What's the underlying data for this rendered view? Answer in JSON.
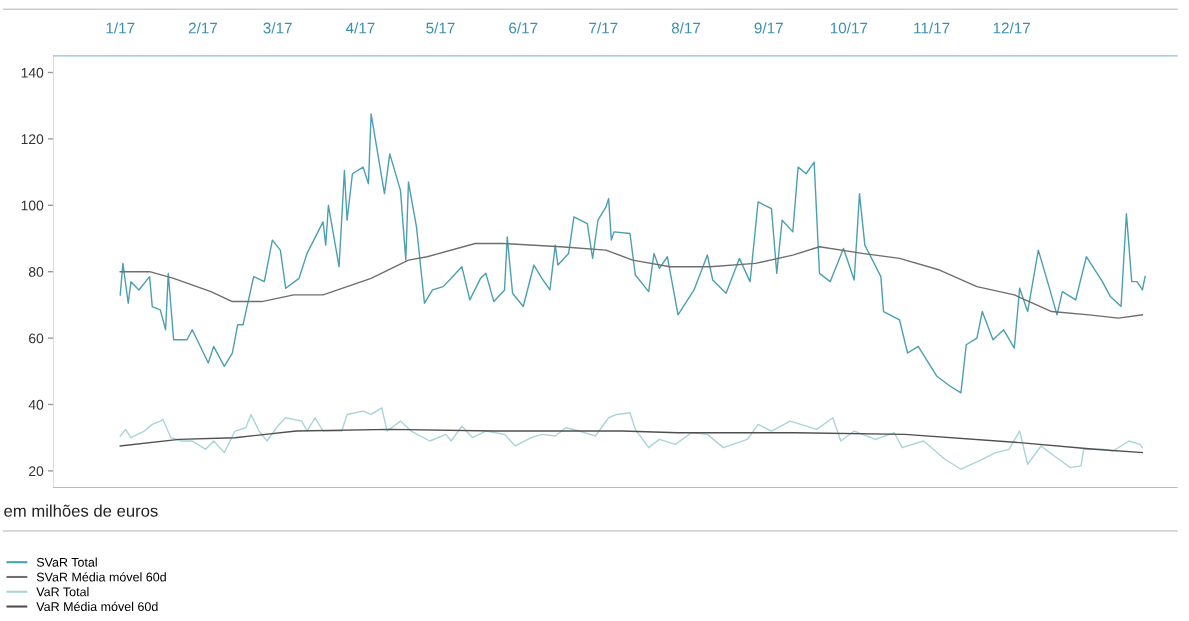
{
  "chart_data": {
    "type": "line",
    "annotations": [
      "em milhões de euros"
    ],
    "xticks": [
      {
        "value": "2017-01-01",
        "label": "1/17"
      },
      {
        "value": "2017-02-01",
        "label": "2/17"
      },
      {
        "value": "2017-03-01",
        "label": "3/17"
      },
      {
        "value": "2017-04-01",
        "label": "4/17"
      },
      {
        "value": "2017-05-01",
        "label": "5/17"
      },
      {
        "value": "2017-06-01",
        "label": "6/17"
      },
      {
        "value": "2017-07-01",
        "label": "7/17"
      },
      {
        "value": "2017-08-01",
        "label": "8/17"
      },
      {
        "value": "2017-09-01",
        "label": "9/17"
      },
      {
        "value": "2017-10-01",
        "label": "10/17"
      },
      {
        "value": "2017-11-01",
        "label": "11/17"
      },
      {
        "value": "2017-12-01",
        "label": "12/17"
      }
    ],
    "xlim": [
      "2016-12-07",
      "2018-02-01"
    ],
    "ylim": [
      15,
      145
    ],
    "yticks": [
      20,
      40,
      60,
      80,
      100,
      120,
      140
    ],
    "grid": false,
    "legend": "bottom left",
    "marker": "none",
    "line_style": "solid",
    "series": [
      {
        "name": "SVaR Total",
        "color": "#4a9fb0",
        "x": [
          "2017-01-01",
          "2017-01-02",
          "2017-01-04",
          "2017-01-05",
          "2017-01-08",
          "2017-01-12",
          "2017-01-13",
          "2017-01-16",
          "2017-01-18",
          "2017-01-19",
          "2017-01-21",
          "2017-01-26",
          "2017-01-28",
          "2017-02-03",
          "2017-02-05",
          "2017-02-09",
          "2017-02-12",
          "2017-02-14",
          "2017-02-16",
          "2017-02-20",
          "2017-02-24",
          "2017-02-27",
          "2017-03-02",
          "2017-03-04",
          "2017-03-09",
          "2017-03-12",
          "2017-03-18",
          "2017-03-19",
          "2017-03-20",
          "2017-03-24",
          "2017-03-26",
          "2017-03-27",
          "2017-03-29",
          "2017-04-02",
          "2017-04-04",
          "2017-04-05",
          "2017-04-10",
          "2017-04-12",
          "2017-04-16",
          "2017-04-18",
          "2017-04-19",
          "2017-04-22",
          "2017-04-25",
          "2017-04-28",
          "2017-05-02",
          "2017-05-05",
          "2017-05-09",
          "2017-05-12",
          "2017-05-16",
          "2017-05-18",
          "2017-05-21",
          "2017-05-25",
          "2017-05-26",
          "2017-05-28",
          "2017-06-01",
          "2017-06-05",
          "2017-06-08",
          "2017-06-11",
          "2017-06-13",
          "2017-06-14",
          "2017-06-18",
          "2017-06-20",
          "2017-06-25",
          "2017-06-27",
          "2017-06-29",
          "2017-07-02",
          "2017-07-03",
          "2017-07-04",
          "2017-07-05",
          "2017-07-11",
          "2017-07-13",
          "2017-07-18",
          "2017-07-20",
          "2017-07-22",
          "2017-07-25",
          "2017-07-29",
          "2017-08-04",
          "2017-08-09",
          "2017-08-11",
          "2017-08-16",
          "2017-08-21",
          "2017-08-25",
          "2017-08-28",
          "2017-09-02",
          "2017-09-04",
          "2017-09-06",
          "2017-09-10",
          "2017-09-12",
          "2017-09-15",
          "2017-09-18",
          "2017-09-20",
          "2017-09-24",
          "2017-09-29",
          "2017-10-03",
          "2017-10-05",
          "2017-10-07",
          "2017-10-13",
          "2017-10-14",
          "2017-10-20",
          "2017-10-23",
          "2017-10-27",
          "2017-11-03",
          "2017-11-08",
          "2017-11-12",
          "2017-11-14",
          "2017-11-18",
          "2017-11-20",
          "2017-11-24",
          "2017-11-28",
          "2017-12-02",
          "2017-12-04",
          "2017-12-07",
          "2017-12-11",
          "2017-12-15",
          "2017-12-18",
          "2017-12-20",
          "2017-12-25",
          "2017-12-29",
          "2018-01-04",
          "2018-01-07",
          "2018-01-11",
          "2018-01-13",
          "2018-01-15",
          "2018-01-17",
          "2018-01-19",
          "2018-01-20"
        ],
        "values": [
          73,
          82.5,
          70.5,
          77,
          74.5,
          78.5,
          69.5,
          68.5,
          62.5,
          79.5,
          59.5,
          59.5,
          62.5,
          52.5,
          57.5,
          51.5,
          55.5,
          64,
          64,
          78.5,
          77,
          89.5,
          86.5,
          75,
          78,
          85.5,
          95,
          88,
          100,
          81.5,
          110.5,
          95.5,
          109.5,
          111.5,
          106.5,
          127.5,
          103.5,
          115.5,
          104.5,
          83.5,
          107,
          93.5,
          70.5,
          74.5,
          75.5,
          78,
          81.5,
          71.5,
          78,
          79.5,
          71,
          74.5,
          90.5,
          73.5,
          69.5,
          82,
          78,
          74.5,
          88,
          82,
          85.5,
          96.5,
          94.5,
          84,
          95.5,
          99.5,
          102,
          89.5,
          92,
          91.5,
          79,
          74,
          85.5,
          81,
          84.5,
          67,
          74.5,
          85,
          77.5,
          73.5,
          84,
          77,
          101,
          99,
          79.5,
          95.5,
          92,
          111.5,
          109.5,
          113,
          79.5,
          77,
          87,
          77.5,
          103.5,
          88,
          78.5,
          68,
          65.5,
          55.5,
          57.5,
          48.5,
          45.5,
          43.5,
          58,
          60,
          68,
          59.5,
          62.5,
          57,
          75,
          68,
          86.5,
          75.5,
          67,
          74,
          71.5,
          84.5,
          77,
          72.5,
          69.5,
          97.5,
          77,
          77,
          74.5,
          78.5
        ]
      },
      {
        "name": "SVaR Média móvel 60d",
        "color": "#6e6e6e",
        "x": [
          "2017-01-01",
          "2017-01-12",
          "2017-01-21",
          "2017-02-04",
          "2017-02-12",
          "2017-02-23",
          "2017-03-07",
          "2017-03-18",
          "2017-04-05",
          "2017-04-19",
          "2017-04-26",
          "2017-05-14",
          "2017-05-24",
          "2017-06-15",
          "2017-07-02",
          "2017-07-12",
          "2017-07-26",
          "2017-08-10",
          "2017-08-27",
          "2017-09-10",
          "2017-09-20",
          "2017-10-06",
          "2017-10-20",
          "2017-11-04",
          "2017-11-18",
          "2017-12-02",
          "2017-12-16",
          "2017-12-30",
          "2018-01-10",
          "2018-01-19"
        ],
        "values": [
          80,
          80,
          78,
          74,
          71,
          71,
          73,
          73,
          78,
          83.5,
          84.5,
          88.5,
          88.5,
          87.5,
          86.5,
          83.5,
          81.5,
          81.5,
          82.5,
          85,
          87.5,
          85.5,
          84,
          80.5,
          75.5,
          73,
          68,
          67,
          66,
          67
        ]
      },
      {
        "name": "VaR Total",
        "color": "#a9d4d8",
        "x": [
          "2017-01-01",
          "2017-01-03",
          "2017-01-05",
          "2017-01-10",
          "2017-01-13",
          "2017-01-16",
          "2017-01-17",
          "2017-01-20",
          "2017-01-24",
          "2017-01-28",
          "2017-02-02",
          "2017-02-05",
          "2017-02-09",
          "2017-02-13",
          "2017-02-17",
          "2017-02-19",
          "2017-02-22",
          "2017-02-25",
          "2017-03-01",
          "2017-03-04",
          "2017-03-10",
          "2017-03-12",
          "2017-03-15",
          "2017-03-18",
          "2017-03-25",
          "2017-03-27",
          "2017-04-02",
          "2017-04-05",
          "2017-04-09",
          "2017-04-11",
          "2017-04-16",
          "2017-04-20",
          "2017-04-27",
          "2017-05-03",
          "2017-05-05",
          "2017-05-09",
          "2017-05-13",
          "2017-05-18",
          "2017-05-25",
          "2017-05-29",
          "2017-06-04",
          "2017-06-08",
          "2017-06-13",
          "2017-06-17",
          "2017-06-22",
          "2017-06-28",
          "2017-07-03",
          "2017-07-06",
          "2017-07-11",
          "2017-07-13",
          "2017-07-18",
          "2017-07-22",
          "2017-07-28",
          "2017-08-03",
          "2017-08-09",
          "2017-08-15",
          "2017-08-24",
          "2017-08-28",
          "2017-09-02",
          "2017-09-09",
          "2017-09-19",
          "2017-09-25",
          "2017-09-28",
          "2017-10-03",
          "2017-10-11",
          "2017-10-18",
          "2017-10-21",
          "2017-10-29",
          "2017-11-06",
          "2017-11-12",
          "2017-11-20",
          "2017-11-25",
          "2017-11-30",
          "2017-12-04",
          "2017-12-07",
          "2017-12-12",
          "2017-12-17",
          "2017-12-23",
          "2017-12-27",
          "2017-12-28",
          "2018-01-04",
          "2018-01-08",
          "2018-01-14",
          "2018-01-18",
          "2018-01-19"
        ],
        "values": [
          30.5,
          32.5,
          30,
          32,
          34,
          35,
          35.5,
          30,
          29,
          29,
          26.5,
          29,
          25.5,
          32,
          33,
          37,
          32,
          29,
          33.5,
          36,
          35,
          32,
          36,
          32,
          32,
          37,
          38,
          37,
          39,
          32,
          35,
          32,
          29,
          31,
          29,
          33.5,
          30,
          32,
          31,
          27.5,
          30,
          31,
          30.5,
          33,
          32,
          30.5,
          36,
          37,
          37.5,
          32.5,
          27,
          29.5,
          28,
          31.5,
          31,
          27,
          29.5,
          34,
          32,
          35,
          32.5,
          36,
          29,
          32,
          29.5,
          31.5,
          27,
          29,
          23.5,
          20.5,
          23.5,
          25.5,
          26.5,
          32,
          22,
          27.5,
          24.5,
          21,
          21.5,
          26.5,
          26.5,
          26,
          29,
          28,
          27
        ]
      },
      {
        "name": "VaR Média móvel 60d",
        "color": "#4f4f4f",
        "x": [
          "2017-01-01",
          "2017-01-23",
          "2017-02-13",
          "2017-03-08",
          "2017-04-12",
          "2017-05-21",
          "2017-07-08",
          "2017-07-29",
          "2017-09-11",
          "2017-10-22",
          "2017-12-04",
          "2018-01-01",
          "2018-01-19"
        ],
        "values": [
          27.5,
          29.5,
          30,
          32,
          32.5,
          32,
          32,
          31.5,
          31.5,
          31,
          28.5,
          26.5,
          25.5
        ]
      }
    ]
  }
}
